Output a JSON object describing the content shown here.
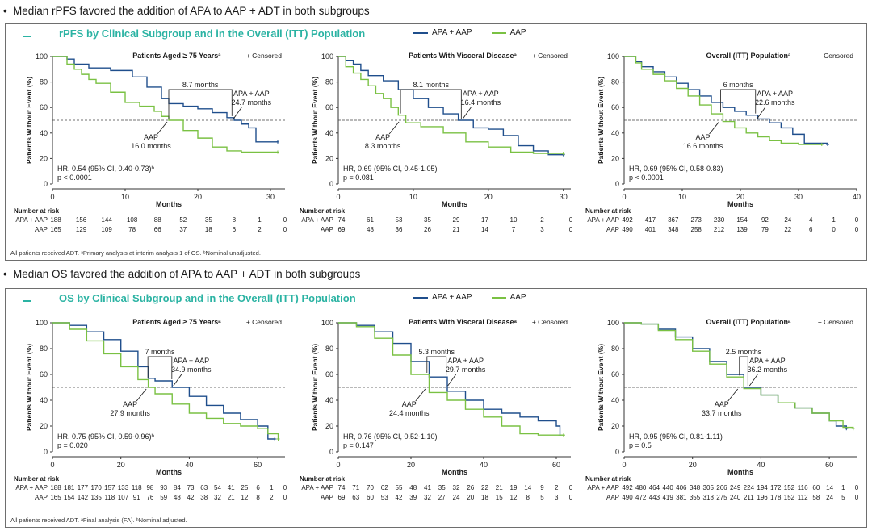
{
  "colors": {
    "apa": "#1f4e8c",
    "aap": "#7ac143",
    "title": "#2bb3a3"
  },
  "sections": [
    {
      "bullet": "Median rPFS favored the addition of APA to AAP + ADT in both subgroups",
      "title": "rPFS by Clinical Subgroup and in the Overall (ITT) Population",
      "legend": {
        "apa": "APA + AAP",
        "aap": "AAP"
      },
      "footnote": "All patients received ADT. ᵃPrimary analysis at interim analysis 1 of OS. ᵇNominal unadjusted."
    },
    {
      "bullet": "Median OS favored the addition of APA to AAP + ADT in both subgroups",
      "title": "OS by Clinical Subgroup and in the Overall (ITT) Population",
      "legend": {
        "apa": "APA + AAP",
        "aap": "AAP"
      },
      "footnote": "All patients received ADT. ᵃFinal analysis (FA). ᵇNominal adjusted."
    }
  ],
  "chart_data": [
    {
      "type": "line",
      "section": 0,
      "title": "Patients Aged ≥ 75 Yearsᵃ",
      "censored_label": "+ Censored",
      "xlabel": "Months",
      "ylabel": "Patients Without Event (%)",
      "xlim": [
        0,
        32
      ],
      "ylim": [
        0,
        100
      ],
      "xticks": [
        0,
        10,
        20,
        30
      ],
      "yticks": [
        0,
        20,
        40,
        60,
        80,
        100
      ],
      "series": [
        {
          "name": "APA + AAP",
          "color_key": "apa",
          "x": [
            0,
            2,
            3,
            5,
            8,
            11,
            13,
            15,
            16,
            18,
            20,
            22,
            24,
            25,
            26,
            27,
            28,
            31
          ],
          "y": [
            100,
            98,
            94,
            91,
            89,
            84,
            76,
            67,
            63,
            61,
            59,
            56,
            52,
            50,
            47,
            44,
            33,
            33
          ]
        },
        {
          "name": "AAP",
          "color_key": "aap",
          "x": [
            0,
            2,
            3,
            4,
            5,
            6,
            8,
            10,
            12,
            14,
            15,
            16,
            18,
            20,
            22,
            24,
            26,
            31
          ],
          "y": [
            100,
            94,
            90,
            86,
            82,
            79,
            72,
            64,
            61,
            57,
            53,
            50,
            42,
            36,
            29,
            26,
            25,
            25
          ]
        }
      ],
      "median_gap_label": "8.7 months",
      "apa_median": {
        "label": "APA + AAP",
        "value": "24.7 months",
        "x": 24.7
      },
      "aap_median": {
        "label": "AAP",
        "value": "16.0 months",
        "x": 16.0
      },
      "hr": "HR, 0.54 (95% CI, 0.40-0.73)ᵇ",
      "p": "p < 0.0001",
      "risk_title": "Number at risk",
      "risk": [
        {
          "label": "APA + AAP",
          "values": [
            "188",
            "156",
            "144",
            "108",
            "88",
            "52",
            "35",
            "8",
            "1",
            "0"
          ]
        },
        {
          "label": "AAP",
          "values": [
            "165",
            "129",
            "109",
            "78",
            "66",
            "37",
            "18",
            "6",
            "2",
            "0"
          ]
        }
      ]
    },
    {
      "type": "line",
      "section": 0,
      "title": "Patients With Visceral Diseaseᵃ",
      "censored_label": "+ Censored",
      "xlabel": "Months",
      "ylabel": "Patients Without Event (%)",
      "xlim": [
        0,
        31
      ],
      "ylim": [
        0,
        100
      ],
      "xticks": [
        0,
        10,
        20,
        30
      ],
      "yticks": [
        0,
        20,
        40,
        60,
        80,
        100
      ],
      "series": [
        {
          "name": "APA + AAP",
          "color_key": "apa",
          "x": [
            0,
            1,
            2,
            3,
            4,
            6,
            8,
            10,
            12,
            14,
            16,
            18,
            20,
            22,
            24,
            26,
            28,
            30
          ],
          "y": [
            100,
            97,
            94,
            89,
            85,
            81,
            74,
            67,
            60,
            55,
            50,
            44,
            43,
            38,
            30,
            26,
            23,
            23
          ]
        },
        {
          "name": "AAP",
          "color_key": "aap",
          "x": [
            0,
            1,
            2,
            3,
            4,
            5,
            6,
            7,
            8,
            9,
            11,
            14,
            17,
            20,
            23,
            26,
            30
          ],
          "y": [
            100,
            92,
            87,
            82,
            77,
            71,
            67,
            60,
            54,
            48,
            45,
            40,
            33,
            29,
            25,
            24,
            24
          ]
        }
      ],
      "median_gap_label": "8.1 months",
      "apa_median": {
        "label": "APA + AAP",
        "value": "16.4 months",
        "x": 16.4
      },
      "aap_median": {
        "label": "AAP",
        "value": "8.3 months",
        "x": 8.3
      },
      "hr": "HR, 0.69 (95% CI, 0.45-1.05)",
      "p": "p = 0.081",
      "risk_title": "Number at risk",
      "risk": [
        {
          "label": "APA + AAP",
          "values": [
            "74",
            "61",
            "53",
            "35",
            "29",
            "17",
            "10",
            "2",
            "0"
          ]
        },
        {
          "label": "AAP",
          "values": [
            "69",
            "48",
            "36",
            "26",
            "21",
            "14",
            "7",
            "3",
            "0"
          ]
        }
      ]
    },
    {
      "type": "line",
      "section": 0,
      "title": "Overall (ITT) Populationᵃ",
      "censored_label": "+ Censored",
      "xlabel": "Months",
      "ylabel": "Patients Without Event (%)",
      "xlim": [
        0,
        40
      ],
      "ylim": [
        0,
        100
      ],
      "xticks": [
        0,
        10,
        20,
        30,
        40
      ],
      "yticks": [
        0,
        20,
        40,
        60,
        80,
        100
      ],
      "series": [
        {
          "name": "APA + AAP",
          "color_key": "apa",
          "x": [
            0,
            2,
            3,
            5,
            7,
            9,
            11,
            13,
            15,
            17,
            19,
            21,
            23,
            25,
            27,
            29,
            31,
            35
          ],
          "y": [
            100,
            96,
            92,
            88,
            84,
            79,
            74,
            69,
            64,
            60,
            57,
            54,
            51,
            48,
            44,
            39,
            32,
            31
          ]
        },
        {
          "name": "AAP",
          "color_key": "aap",
          "x": [
            0,
            2,
            3,
            5,
            7,
            9,
            11,
            13,
            15,
            17,
            19,
            21,
            23,
            25,
            27,
            30,
            34
          ],
          "y": [
            100,
            95,
            90,
            86,
            81,
            75,
            69,
            62,
            55,
            49,
            44,
            40,
            37,
            34,
            32,
            31,
            31
          ]
        }
      ],
      "median_gap_label": "6 months",
      "apa_median": {
        "label": "APA + AAP",
        "value": "22.6 months",
        "x": 22.6
      },
      "aap_median": {
        "label": "AAP",
        "value": "16.6 months",
        "x": 16.6
      },
      "hr": "HR, 0.69 (95% CI, 0.58-0.83)",
      "p": "p < 0.0001",
      "risk_title": "Number at risk",
      "risk": [
        {
          "label": "APA + AAP",
          "values": [
            "492",
            "417",
            "367",
            "273",
            "230",
            "154",
            "92",
            "24",
            "4",
            "1",
            "0"
          ]
        },
        {
          "label": "AAP",
          "values": [
            "490",
            "401",
            "348",
            "258",
            "212",
            "139",
            "79",
            "22",
            "6",
            "0",
            "0"
          ]
        }
      ]
    },
    {
      "type": "line",
      "section": 1,
      "title": "Patients Aged ≥ 75 Yearsᵃ",
      "censored_label": "+ Censored",
      "xlabel": "Months",
      "ylabel": "Patients Without Event (%)",
      "xlim": [
        0,
        68
      ],
      "ylim": [
        0,
        100
      ],
      "xticks": [
        0,
        20,
        40,
        60
      ],
      "yticks": [
        0,
        20,
        40,
        60,
        80,
        100
      ],
      "series": [
        {
          "name": "APA + AAP",
          "color_key": "apa",
          "x": [
            0,
            5,
            10,
            15,
            20,
            25,
            28,
            30,
            35,
            40,
            45,
            50,
            55,
            60,
            63,
            65
          ],
          "y": [
            100,
            98,
            93,
            87,
            78,
            66,
            57,
            55,
            50,
            43,
            36,
            30,
            25,
            20,
            10,
            10
          ]
        },
        {
          "name": "AAP",
          "color_key": "aap",
          "x": [
            0,
            5,
            10,
            15,
            20,
            25,
            28,
            30,
            35,
            40,
            45,
            50,
            55,
            60,
            63,
            66
          ],
          "y": [
            100,
            95,
            86,
            76,
            66,
            56,
            50,
            45,
            37,
            30,
            26,
            22,
            20,
            18,
            14,
            10
          ]
        }
      ],
      "median_gap_label": "7 months",
      "apa_median": {
        "label": "APA + AAP",
        "value": "34.9 months",
        "x": 34.9
      },
      "aap_median": {
        "label": "AAP",
        "value": "27.9 months",
        "x": 27.9
      },
      "hr": "HR, 0.75 (95% CI, 0.59-0.96)ᵇ",
      "p": "p = 0.020",
      "risk_title": "Number at risk",
      "risk": [
        {
          "label": "APA + AAP",
          "values": [
            "188",
            "181",
            "177",
            "170",
            "157",
            "133",
            "118",
            "98",
            "93",
            "84",
            "73",
            "63",
            "54",
            "41",
            "25",
            "6",
            "1",
            "0"
          ]
        },
        {
          "label": "AAP",
          "values": [
            "165",
            "154",
            "142",
            "135",
            "118",
            "107",
            "91",
            "76",
            "59",
            "48",
            "42",
            "38",
            "32",
            "21",
            "12",
            "8",
            "2",
            "0"
          ]
        }
      ]
    },
    {
      "type": "line",
      "section": 1,
      "title": "Patients With Visceral Diseaseᵃ",
      "censored_label": "+ Censored",
      "xlabel": "Months",
      "ylabel": "Patients Without Event (%)",
      "xlim": [
        0,
        64
      ],
      "ylim": [
        0,
        100
      ],
      "xticks": [
        0,
        20,
        40,
        60
      ],
      "yticks": [
        0,
        20,
        40,
        60,
        80,
        100
      ],
      "series": [
        {
          "name": "APA + AAP",
          "color_key": "apa",
          "x": [
            0,
            5,
            10,
            15,
            20,
            25,
            30,
            35,
            40,
            45,
            50,
            55,
            60,
            61
          ],
          "y": [
            100,
            98,
            93,
            84,
            70,
            58,
            47,
            40,
            33,
            30,
            27,
            24,
            20,
            13
          ]
        },
        {
          "name": "AAP",
          "color_key": "aap",
          "x": [
            0,
            5,
            10,
            15,
            20,
            25,
            30,
            35,
            40,
            45,
            50,
            55,
            62
          ],
          "y": [
            100,
            97,
            88,
            75,
            60,
            46,
            40,
            33,
            27,
            20,
            14,
            13,
            13
          ]
        }
      ],
      "median_gap_label": "5.3 months",
      "apa_median": {
        "label": "APA + AAP",
        "value": "29.7 months",
        "x": 29.7
      },
      "aap_median": {
        "label": "AAP",
        "value": "24.4 months",
        "x": 24.4
      },
      "hr": "HR, 0.76 (95% CI, 0.52-1.10)",
      "p": "p = 0.147",
      "risk_title": "Number at risk",
      "risk": [
        {
          "label": "APA + AAP",
          "values": [
            "74",
            "71",
            "70",
            "62",
            "55",
            "48",
            "41",
            "35",
            "32",
            "26",
            "22",
            "21",
            "19",
            "14",
            "9",
            "2",
            "0"
          ]
        },
        {
          "label": "AAP",
          "values": [
            "69",
            "63",
            "60",
            "53",
            "42",
            "39",
            "32",
            "27",
            "24",
            "20",
            "18",
            "15",
            "12",
            "8",
            "5",
            "3",
            "0"
          ]
        }
      ]
    },
    {
      "type": "line",
      "section": 1,
      "title": "Overall (ITT) Populationᵃ",
      "censored_label": "+ Censored",
      "xlabel": "Months",
      "ylabel": "Patients Without Event (%)",
      "xlim": [
        0,
        68
      ],
      "ylim": [
        0,
        100
      ],
      "xticks": [
        0,
        20,
        40,
        60
      ],
      "yticks": [
        0,
        20,
        40,
        60,
        80,
        100
      ],
      "series": [
        {
          "name": "APA + AAP",
          "color_key": "apa",
          "x": [
            0,
            5,
            10,
            15,
            20,
            25,
            30,
            35,
            40,
            45,
            50,
            55,
            60,
            62,
            65
          ],
          "y": [
            100,
            99,
            95,
            89,
            80,
            70,
            60,
            50,
            44,
            38,
            34,
            30,
            24,
            20,
            18
          ]
        },
        {
          "name": "AAP",
          "color_key": "aap",
          "x": [
            0,
            5,
            10,
            15,
            20,
            25,
            30,
            35,
            40,
            45,
            50,
            55,
            60,
            64,
            67
          ],
          "y": [
            100,
            99,
            94,
            87,
            78,
            68,
            58,
            49,
            44,
            38,
            34,
            30,
            24,
            19,
            18
          ]
        }
      ],
      "median_gap_label": "2.5 months",
      "apa_median": {
        "label": "APA + AAP",
        "value": "36.2 months",
        "x": 36.2
      },
      "aap_median": {
        "label": "AAP",
        "value": "33.7 months",
        "x": 33.7
      },
      "hr": "HR, 0.95 (95% CI, 0.81-1.11)",
      "p": "p = 0.5",
      "risk_title": "Number at risk",
      "risk": [
        {
          "label": "APA + AAP",
          "values": [
            "492",
            "480",
            "464",
            "440",
            "406",
            "348",
            "305",
            "266",
            "249",
            "224",
            "194",
            "172",
            "152",
            "116",
            "60",
            "14",
            "1",
            "0"
          ]
        },
        {
          "label": "AAP",
          "values": [
            "490",
            "472",
            "443",
            "419",
            "381",
            "355",
            "318",
            "275",
            "240",
            "211",
            "196",
            "178",
            "152",
            "112",
            "58",
            "24",
            "5",
            "0"
          ]
        }
      ]
    }
  ]
}
